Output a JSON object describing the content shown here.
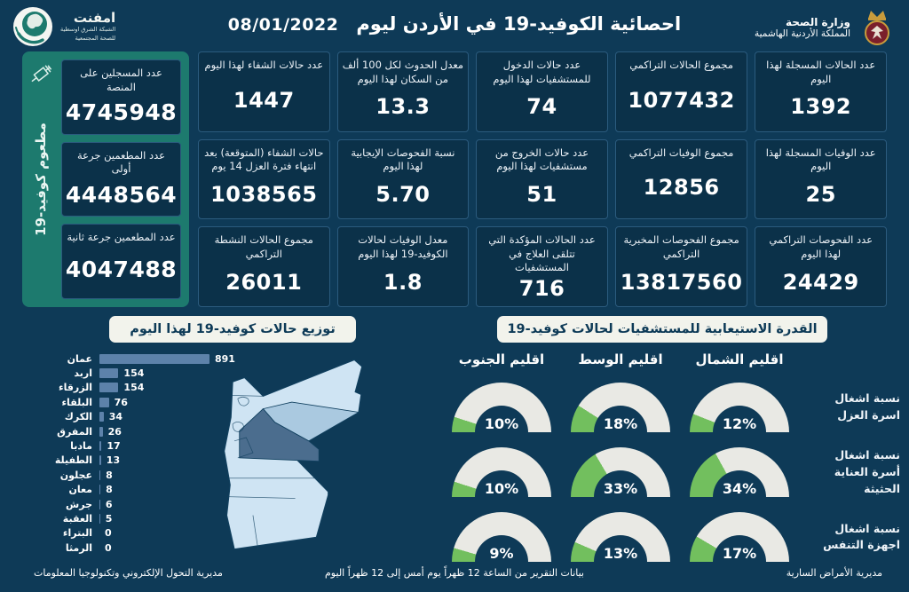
{
  "header": {
    "title": "احصائية الكوفيد-19 في الأردن ليوم",
    "date": "08/01/2022",
    "left_logo": {
      "name": "امفنت",
      "line1": "الشبكة الشرق اوسطية",
      "line2": "للصحة المجتمعية"
    },
    "right_logo": {
      "line1": "وزارة الصحة",
      "line2": "المملكة الأردنية الهاشمية"
    }
  },
  "icons": {
    "vaccine_panel": "syringe-icon",
    "left_logo": "globe-icon",
    "right_logo": "jordan-emblem-icon"
  },
  "colors": {
    "background": "#0e3a57",
    "card": "#0b3149",
    "card_border": "#2b5b7e",
    "sidebar_green": "#1d7a6e",
    "bar": "#5d82aa",
    "gauge_fill": "#72bf5e",
    "gauge_track": "#e9e9e4",
    "pill": "#f2f3ec",
    "map_light": "#cfe4f3",
    "map_dark": "#4b6d8e"
  },
  "stats_columns": [
    {
      "cards": [
        {
          "label": "عدد الحالات المسجلة لهذا اليوم",
          "value": "1392"
        },
        {
          "label": "عدد الوفيات المسجلة لهذا اليوم",
          "value": "25"
        },
        {
          "label": "عدد الفحوصات التراكمي لهذا اليوم",
          "value": "24429"
        }
      ]
    },
    {
      "cards": [
        {
          "label": "مجموع الحالات التراكمي",
          "value": "1077432"
        },
        {
          "label": "مجموع الوفيات التراكمي",
          "value": "12856"
        },
        {
          "label": "مجموع الفحوصات المخبرية التراكمي",
          "value": "13817560"
        }
      ]
    },
    {
      "cards": [
        {
          "label": "عدد حالات الدخول للمستشفيات لهذا اليوم",
          "value": "74"
        },
        {
          "label": "عدد حالات الخروج من مستشفيات لهذا اليوم",
          "value": "51"
        },
        {
          "label": "عدد الحالات المؤكدة التي تتلقى العلاج في المستشفيات",
          "value": "716"
        }
      ]
    },
    {
      "cards": [
        {
          "label": "معدل الحدوث لكل 100 ألف من السكان لهذا اليوم",
          "value": "13.3"
        },
        {
          "label": "نسبة الفحوصات الإيجابية لهذا اليوم",
          "value": "5.70"
        },
        {
          "label": "معدل الوفيات لحالات الكوفيد-19 لهذا اليوم",
          "value": "1.8"
        }
      ]
    },
    {
      "cards": [
        {
          "label": "عدد حالات الشفاء لهذا اليوم",
          "value": "1447"
        },
        {
          "label": "حالات الشفاء (المتوقعة) بعد انتهاء فترة العزل 14 يوم",
          "value": "1038565"
        },
        {
          "label": "مجموع الحالات النشطة التراكمي",
          "value": "26011"
        }
      ]
    }
  ],
  "vaccine_panel": {
    "vertical_label": "مطعوم كوفيد-19",
    "cards": [
      {
        "label": "عدد المسجلين على المنصة",
        "value": "4745948"
      },
      {
        "label": "عدد المطعمين جرعة أولى",
        "value": "4448564"
      },
      {
        "label": "عدد المطعمين جرعة ثانية",
        "value": "4047488"
      }
    ]
  },
  "chart_data": [
    {
      "type": "bar",
      "orientation": "horizontal",
      "title": "توزيع حالات كوفيد-19 لهذا اليوم",
      "categories": [
        "عمان",
        "اربد",
        "الزرقاء",
        "البلقاء",
        "الكرك",
        "المفرق",
        "مادبا",
        "الطفيلة",
        "عجلون",
        "معان",
        "جرش",
        "العقبة",
        "البتراء",
        "الرمثا"
      ],
      "values": [
        891,
        154,
        154,
        76,
        34,
        26,
        17,
        13,
        8,
        8,
        6,
        5,
        0,
        0
      ],
      "xlim": [
        0,
        891
      ],
      "bar_color": "#5d82aa",
      "map_highlight": "عمان"
    },
    {
      "type": "gauge-grid",
      "title": "القدرة الاستيعابية للمستشفيات لحالات كوفيد-19",
      "columns": [
        "اقليم الجنوب",
        "اقليم الوسط",
        "اقليم الشمال"
      ],
      "rows": [
        {
          "label": "نسبة اشغال اسرة العزل",
          "values": [
            10,
            18,
            12
          ]
        },
        {
          "label": "نسبة اشغال أسرة العناية الحثيثة",
          "values": [
            10,
            33,
            34
          ]
        },
        {
          "label": "نسبة اشغال اجهزة التنفس",
          "values": [
            9,
            13,
            17
          ]
        }
      ],
      "unit": "%",
      "range": [
        0,
        100
      ],
      "fill_color": "#72bf5e",
      "track_color": "#e9e9e4"
    }
  ],
  "footer": {
    "left": "مديرية التحول الإلكتروني وتكنولوجيا المعلومات",
    "center": "بيانات التقرير من الساعة 12 ظهراً يوم أمس إلى 12 ظهراً اليوم",
    "right": "مديرية الأمراض السارية"
  }
}
